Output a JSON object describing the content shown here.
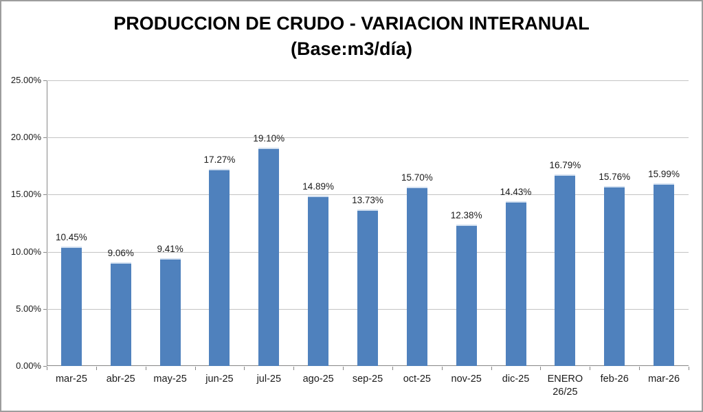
{
  "chart_data": {
    "type": "bar",
    "title": "PRODUCCION DE CRUDO - VARIACION INTERANUAL",
    "subtitle": "(Base:m3/día)",
    "categories": [
      "mar-25",
      "abr-25",
      "may-25",
      "jun-25",
      "jul-25",
      "ago-25",
      "sep-25",
      "oct-25",
      "nov-25",
      "dic-25",
      "ENERO 26/25",
      "feb-26",
      "mar-26"
    ],
    "values": [
      10.45,
      9.06,
      9.41,
      17.27,
      19.1,
      14.89,
      13.73,
      15.7,
      12.38,
      14.43,
      16.79,
      15.76,
      15.99
    ],
    "value_labels": [
      "10.45%",
      "9.06%",
      "9.41%",
      "17.27%",
      "19.10%",
      "14.89%",
      "13.73%",
      "15.70%",
      "12.38%",
      "14.43%",
      "16.79%",
      "15.76%",
      "15.99%"
    ],
    "xlabel": "",
    "ylabel": "",
    "ylim": [
      0,
      25
    ],
    "ytick_step": 5,
    "ytick_labels": [
      "0.00%",
      "5.00%",
      "10.00%",
      "15.00%",
      "20.00%",
      "25.00%"
    ],
    "grid": true,
    "legend": false,
    "bar_color": "#4f81bd",
    "axis_color": "#868686",
    "gridline_color": "#c3c3c3"
  }
}
